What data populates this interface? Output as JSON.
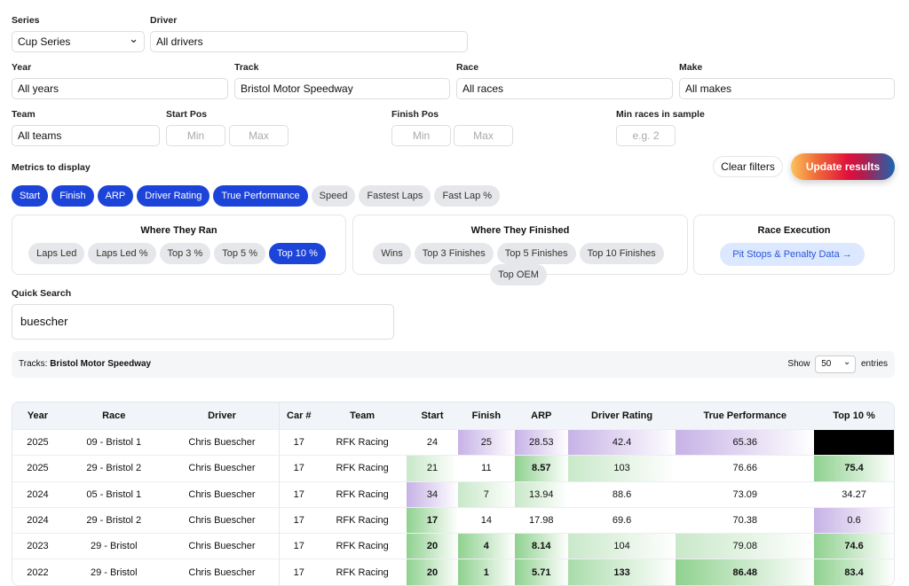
{
  "filters": {
    "series": {
      "label": "Series",
      "value": "Cup Series"
    },
    "driver": {
      "label": "Driver",
      "value": "All drivers"
    },
    "year": {
      "label": "Year",
      "value": "All years"
    },
    "track": {
      "label": "Track",
      "value": "Bristol Motor Speedway"
    },
    "race": {
      "label": "Race",
      "value": "All races"
    },
    "make": {
      "label": "Make",
      "value": "All makes"
    },
    "team": {
      "label": "Team",
      "value": "All teams"
    },
    "start_pos": {
      "label": "Start Pos",
      "min": "Min",
      "max": "Max"
    },
    "finish_pos": {
      "label": "Finish Pos",
      "min": "Min",
      "max": "Max"
    },
    "min_races": {
      "label": "Min races in sample",
      "placeholder": "e.g. 2"
    }
  },
  "metrics": {
    "label": "Metrics to display",
    "items": [
      {
        "label": "Start",
        "on": true
      },
      {
        "label": "Finish",
        "on": true
      },
      {
        "label": "ARP",
        "on": true
      },
      {
        "label": "Driver Rating",
        "on": true
      },
      {
        "label": "True Performance",
        "on": true
      },
      {
        "label": "Speed",
        "on": false
      },
      {
        "label": "Fastest Laps",
        "on": false
      },
      {
        "label": "Fast Lap %",
        "on": false
      }
    ]
  },
  "buttons": {
    "clear": "Clear filters",
    "update": "Update results"
  },
  "groups": {
    "ran": {
      "title": "Where They Ran",
      "items": [
        {
          "label": "Laps Led",
          "on": false
        },
        {
          "label": "Laps Led %",
          "on": false
        },
        {
          "label": "Top 3 %",
          "on": false
        },
        {
          "label": "Top 5 %",
          "on": false
        },
        {
          "label": "Top 10 %",
          "on": true
        }
      ]
    },
    "finished": {
      "title": "Where They Finished",
      "items": [
        {
          "label": "Wins",
          "on": false
        },
        {
          "label": "Top 3 Finishes",
          "on": false
        },
        {
          "label": "Top 5 Finishes",
          "on": false
        },
        {
          "label": "Top 10 Finishes",
          "on": false
        },
        {
          "label": "Top OEM",
          "on": false
        }
      ]
    },
    "execution": {
      "title": "Race Execution",
      "link": "Pit Stops & Penalty Data →"
    }
  },
  "search": {
    "label": "Quick Search",
    "value": "buescher"
  },
  "info": {
    "tracks_label": "Tracks:",
    "tracks_value": "Bristol Motor Speedway",
    "show": "Show",
    "entries_value": "50",
    "entries": "entries"
  },
  "table": {
    "headers": [
      "Year",
      "Race",
      "Driver",
      "Car #",
      "Team",
      "Start",
      "Finish",
      "ARP",
      "Driver Rating",
      "True Performance",
      "Top 10 %"
    ],
    "rows": [
      {
        "cells": [
          "2025",
          "09 - Bristol 1",
          "Chris Buescher",
          "17",
          "RFK Racing",
          "24",
          "25",
          "28.53",
          "42.4",
          "65.36",
          ""
        ],
        "tones": [
          "",
          "",
          "",
          "",
          "",
          "",
          "p2",
          "p2",
          "p2",
          "p2",
          "bk"
        ]
      },
      {
        "cells": [
          "2025",
          "29 - Bristol 2",
          "Chris Buescher",
          "17",
          "RFK Racing",
          "21",
          "11",
          "8.57",
          "103",
          "76.66",
          "75.4"
        ],
        "tones": [
          "",
          "",
          "",
          "",
          "",
          "g1",
          "",
          "g3",
          "g1",
          "",
          "g3"
        ]
      },
      {
        "cells": [
          "2024",
          "05 - Bristol 1",
          "Chris Buescher",
          "17",
          "RFK Racing",
          "34",
          "7",
          "13.94",
          "88.6",
          "73.09",
          "34.27"
        ],
        "tones": [
          "",
          "",
          "",
          "",
          "",
          "p2",
          "g1",
          "g1",
          "",
          "",
          ""
        ]
      },
      {
        "cells": [
          "2024",
          "29 - Bristol 2",
          "Chris Buescher",
          "17",
          "RFK Racing",
          "17",
          "14",
          "17.98",
          "69.6",
          "70.38",
          "0.6"
        ],
        "tones": [
          "",
          "",
          "",
          "",
          "",
          "g3",
          "",
          "",
          "",
          "",
          "p2"
        ]
      },
      {
        "cells": [
          "2023",
          "29 - Bristol",
          "Chris Buescher",
          "17",
          "RFK Racing",
          "20",
          "4",
          "8.14",
          "104",
          "79.08",
          "74.6"
        ],
        "tones": [
          "",
          "",
          "",
          "",
          "",
          "g3",
          "g3",
          "g3",
          "g1",
          "g1",
          "g3"
        ]
      },
      {
        "cells": [
          "2022",
          "29 - Bristol",
          "Chris Buescher",
          "17",
          "RFK Racing",
          "20",
          "1",
          "5.71",
          "133",
          "86.48",
          "83.4"
        ],
        "tones": [
          "",
          "",
          "",
          "",
          "",
          "g3",
          "g3",
          "g3",
          "g2",
          "g3",
          "g3"
        ]
      }
    ]
  }
}
